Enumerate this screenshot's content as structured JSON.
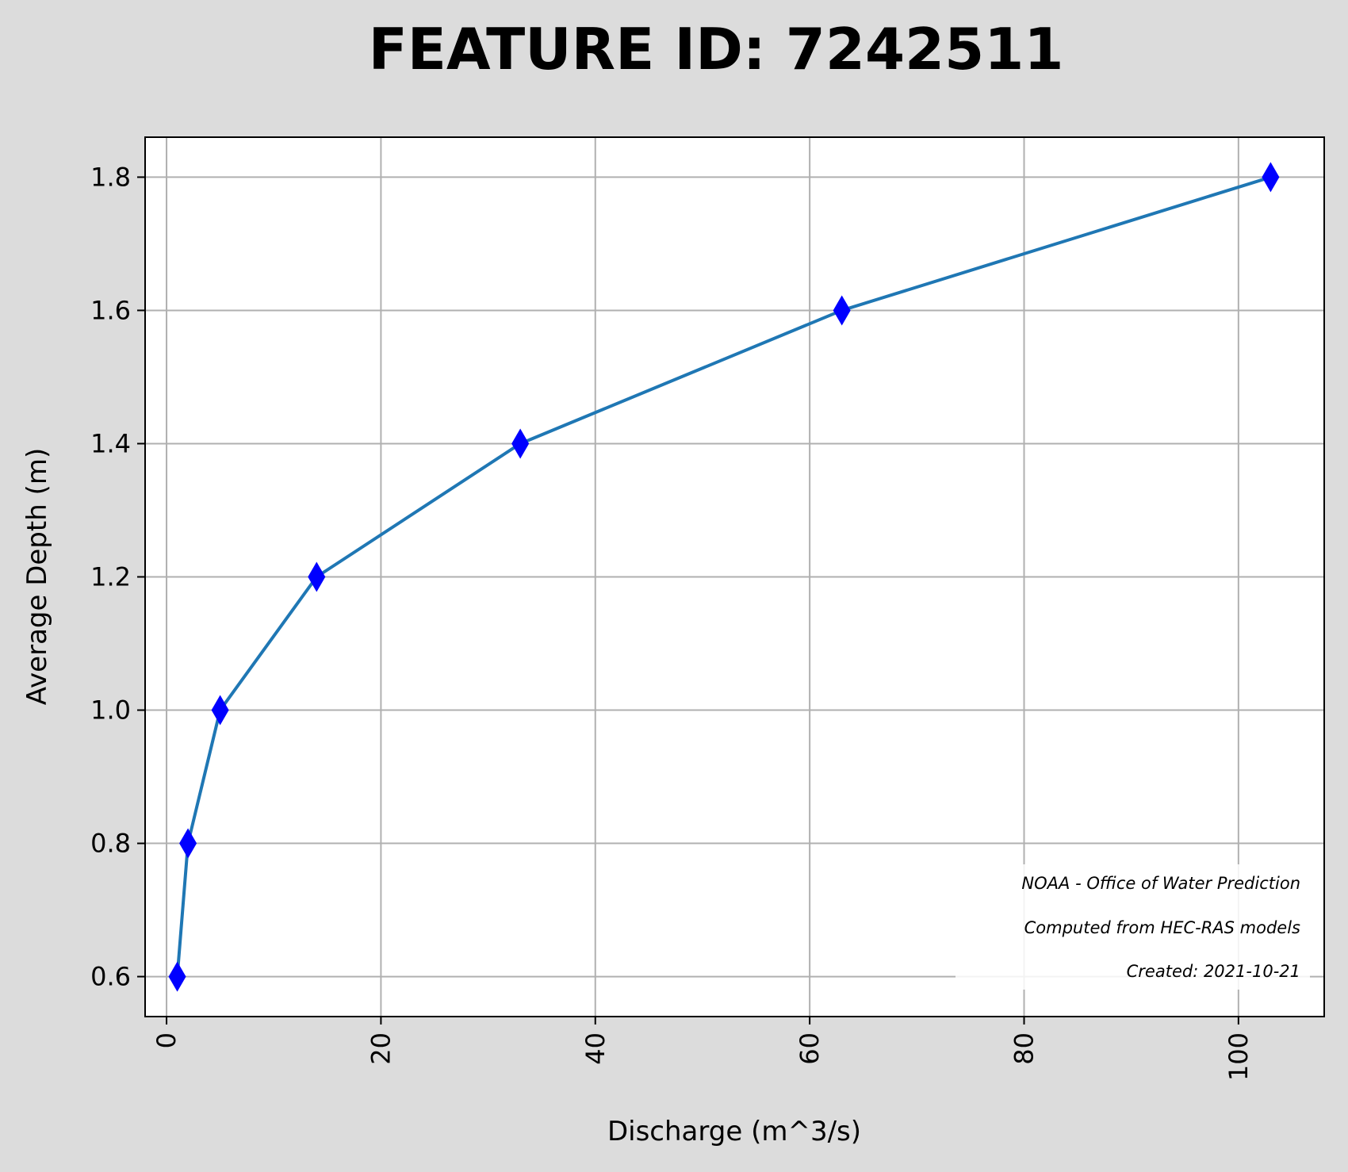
{
  "chart_data": {
    "type": "line",
    "title": "FEATURE ID: 7242511",
    "xlabel": "Discharge (m^3/s)",
    "ylabel": "Average Depth (m)",
    "xlim": [
      -2,
      108
    ],
    "ylim": [
      0.54,
      1.86
    ],
    "xticks": [
      0,
      20,
      40,
      60,
      80,
      100
    ],
    "xtick_labels": [
      "0",
      "20",
      "40",
      "60",
      "80",
      "100"
    ],
    "yticks": [
      0.6,
      0.8,
      1.0,
      1.2,
      1.4,
      1.6,
      1.8
    ],
    "ytick_labels": [
      "0.6",
      "0.8",
      "1.0",
      "1.2",
      "1.4",
      "1.6",
      "1.8"
    ],
    "grid": true,
    "series": [
      {
        "x": [
          1,
          2,
          5,
          14,
          33,
          63,
          103
        ],
        "y": [
          0.6,
          0.8,
          1.0,
          1.2,
          1.4,
          1.6,
          1.8
        ],
        "line_color": "#1f77b4",
        "marker": "thin-diamond",
        "marker_color": "#0000ff"
      }
    ],
    "annotations": [
      "NOAA - Office of Water Prediction",
      "Computed from HEC-RAS models",
      "Created: 2021-10-21"
    ]
  },
  "colors": {
    "figure_background": "#dcdcdc",
    "plot_background": "#ffffff",
    "grid": "#b0b0b0",
    "line": "#1f77b4",
    "marker": "#0000ff"
  }
}
